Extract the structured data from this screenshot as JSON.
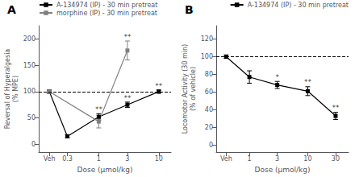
{
  "chart_data": [
    {
      "type": "line",
      "title": "A",
      "xlabel": "Dose (μmol/kg)",
      "ylabel": "Reversal of Hyperalgesia\n(% MPE)",
      "log": "x",
      "xlim": [
        0.1,
        16
      ],
      "xticks": [
        {
          "value": 0.15,
          "label": "Veh"
        },
        0.3,
        1,
        3,
        10
      ],
      "ylim": [
        -15,
        225
      ],
      "yticks": [
        0,
        50,
        100,
        150,
        200
      ],
      "grid": false,
      "legend": "upper left",
      "hlines": [
        {
          "y": 100,
          "line_style": "dashed",
          "color": "black"
        }
      ],
      "series": [
        {
          "name": "A-134974 (IP) - 30 min pretreat",
          "color": "black",
          "marker": "square",
          "x": [
            0.15,
            0.3,
            1,
            3,
            10
          ],
          "values": [
            100,
            15,
            52,
            75,
            100
          ],
          "errors": [
            3,
            3,
            6,
            5,
            3
          ]
        },
        {
          "name": "morphine (IP) - 30 min pretreat",
          "color": "gray",
          "marker": "square",
          "x": [
            0.15,
            1,
            3
          ],
          "values": [
            100,
            43,
            178
          ],
          "errors": [
            3,
            12,
            18
          ]
        }
      ],
      "annotations": [
        {
          "x": 1,
          "y": 59,
          "text": "**"
        },
        {
          "x": 3,
          "y": 81,
          "text": "**"
        },
        {
          "x": 10,
          "y": 104,
          "text": "**"
        },
        {
          "x": 3,
          "y": 197,
          "text": "**"
        }
      ]
    },
    {
      "type": "line",
      "title": "B",
      "xlabel": "Dose (μmol/kg)",
      "ylabel": "Locomotor Activity (30 min)\n(% of vehicle)",
      "log": "x",
      "xlim": [
        0.27,
        50
      ],
      "xticks": [
        {
          "value": 0.4,
          "label": "Veh"
        },
        1,
        3,
        10,
        30
      ],
      "ylim": [
        -8,
        135
      ],
      "yticks": [
        0,
        20,
        40,
        60,
        80,
        100,
        120
      ],
      "grid": false,
      "legend": "upper right",
      "hlines": [
        {
          "y": 100,
          "line_style": "dashed",
          "color": "black"
        }
      ],
      "series": [
        {
          "name": "A-134974 (IP) - 30 min pretreat",
          "color": "black",
          "marker": "square",
          "x": [
            0.4,
            1,
            3,
            10,
            30
          ],
          "values": [
            100,
            77,
            68,
            61,
            33
          ],
          "errors": [
            2,
            7,
            4,
            5,
            4
          ]
        }
      ],
      "annotations": [
        {
          "x": 3,
          "y": 73,
          "text": "*"
        },
        {
          "x": 10,
          "y": 67,
          "text": "**"
        },
        {
          "x": 30,
          "y": 38,
          "text": "**"
        }
      ]
    }
  ]
}
